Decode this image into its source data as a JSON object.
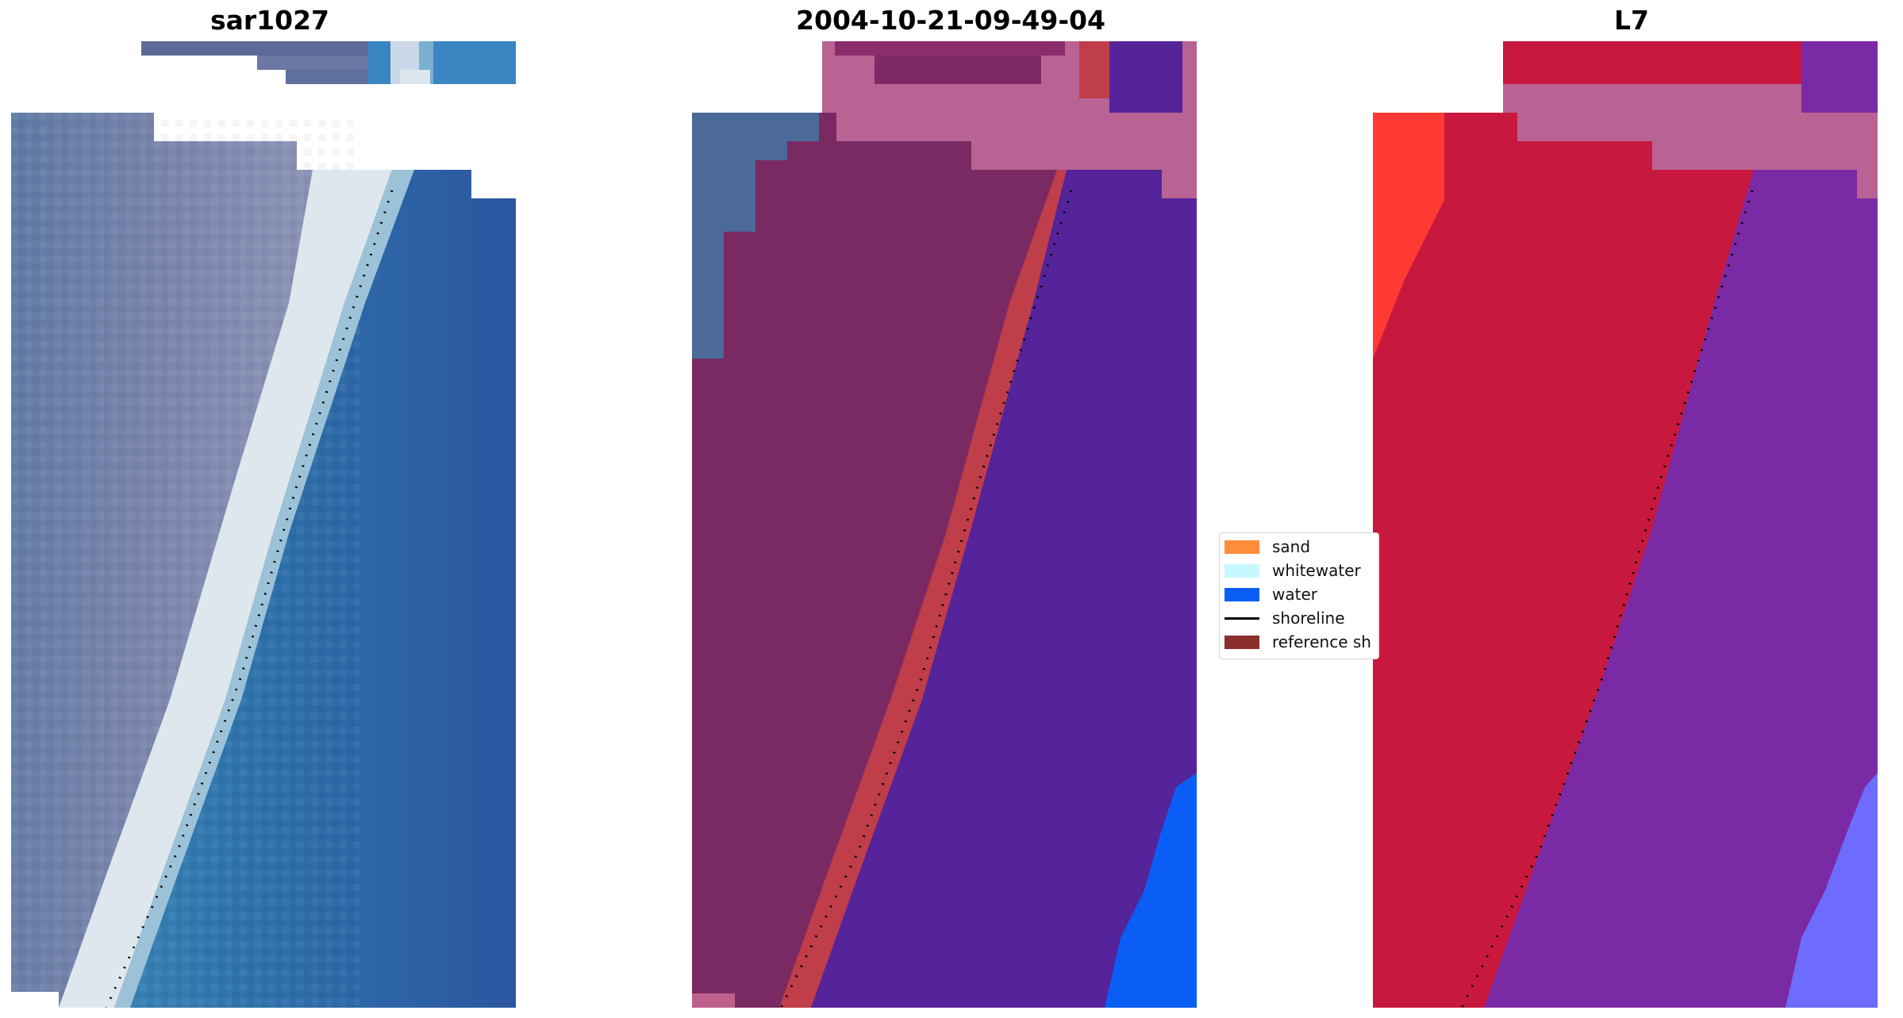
{
  "panels": [
    {
      "title": "sar1027"
    },
    {
      "title": "2004-10-21-09-49-04"
    },
    {
      "title": "L7"
    }
  ],
  "legend": {
    "items": [
      {
        "label": "sand",
        "color": "#ff8c3a",
        "kind": "patch"
      },
      {
        "label": "whitewater",
        "color": "#c8f8ff",
        "kind": "patch"
      },
      {
        "label": "water",
        "color": "#0b5ef5",
        "kind": "patch"
      },
      {
        "label": "shoreline",
        "color": "#000000",
        "kind": "line"
      },
      {
        "label": "reference sh",
        "color": "#8b2e2e",
        "kind": "patch"
      }
    ]
  },
  "colors": {
    "rgb_land": "#6a7fa6",
    "rgb_beach": "#dfe7ee",
    "rgb_sea": "#2c6aa6",
    "classified_land": "#7a2a62",
    "classified_pink": "#b86393",
    "classified_buffer": "#c03d4a",
    "classified_water": "#55239a",
    "classified_bright_water": "#0b5ef5",
    "falsecolor_land": "#c8183e",
    "falsecolor_water": "#7b2aa6",
    "falsecolor_bright": "#ff3a34",
    "falsecolor_pale_water": "#6d6cff"
  }
}
